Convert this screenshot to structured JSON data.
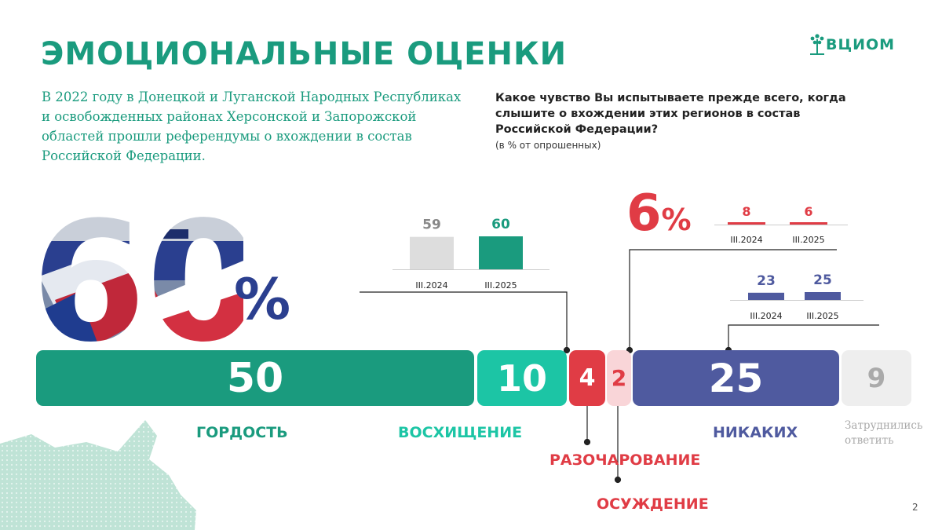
{
  "header": {
    "title": "ЭМОЦИОНАЛЬНЫЕ ОЦЕНКИ",
    "logo_text": "ВЦИОМ"
  },
  "intro": {
    "lines": [
      "В 2022 году в Донецкой и Луганской Народных Республиках",
      "и освобожденных районах Херсонской и Запорожской",
      "областей прошли референдумы о вхождении в состав",
      "Российской Федерации."
    ]
  },
  "question": {
    "lines": [
      "Какое чувство Вы испытываете прежде всего, когда",
      "слышите о вхождении этих регионов в состав",
      "Российской Федерации?"
    ],
    "note": "(в % от опрошенных)"
  },
  "highlights": {
    "positive_big": "60",
    "positive_pct": "%",
    "negative_big": "6",
    "negative_pct": "%"
  },
  "page_number": "2",
  "colors": {
    "green_dark": "#1a9b7e",
    "green_light": "#1cc5a5",
    "red": "#e03c45",
    "pink": "#f9d5d8",
    "navy": "#4f5a9f",
    "grey": "#eeeeee",
    "grey_bar": "#dddddd"
  },
  "chart_data": [
    {
      "type": "bar",
      "orientation": "horizontal-stacked",
      "categories": [
        "ГОРДОСТЬ",
        "ВОСХИЩЕНИЕ",
        "РАЗОЧАРОВАНИЕ",
        "ОСУЖДЕНИЕ",
        "НИКАКИХ",
        "Затруднились ответить"
      ],
      "values": [
        50,
        10,
        4,
        2,
        25,
        9
      ],
      "colors": [
        "#1a9b7e",
        "#1cc5a5",
        "#e03c45",
        "#f9d5d8",
        "#4f5a9f",
        "#eeeeee"
      ],
      "value_colors": [
        "#ffffff",
        "#ffffff",
        "#ffffff",
        "#e03c45",
        "#ffffff",
        "#aaaaaa"
      ],
      "label_colors": [
        "#1a9b7e",
        "#1cc5a5",
        "#e03c45",
        "#e03c45",
        "#4f5a9f",
        "#aaaaaa"
      ],
      "label_lines": [
        [
          "ГОРДОСТЬ"
        ],
        [
          "ВОСХИЩЕНИЕ"
        ],
        [
          "РАЗОЧАРОВАНИЕ"
        ],
        [
          "ОСУЖДЕНИЕ"
        ],
        [
          "НИКАКИХ"
        ],
        [
          "Затруднились",
          "ответить"
        ]
      ]
    },
    {
      "type": "bar",
      "categories": [
        "III.2024",
        "III.2025"
      ],
      "values": [
        59,
        60
      ],
      "colors": [
        "#dddddd",
        "#1a9b7e"
      ],
      "value_colors": [
        "#888888",
        "#1a9b7e"
      ],
      "ylim": [
        0,
        100
      ]
    },
    {
      "type": "bar",
      "categories": [
        "III.2024",
        "III.2025"
      ],
      "values": [
        8,
        6
      ],
      "colors": [
        "#e03c45",
        "#e03c45"
      ],
      "value_colors": [
        "#e03c45",
        "#e03c45"
      ],
      "ylim": [
        0,
        100
      ]
    },
    {
      "type": "bar",
      "categories": [
        "III.2024",
        "III.2025"
      ],
      "values": [
        23,
        25
      ],
      "colors": [
        "#4f5a9f",
        "#4f5a9f"
      ],
      "value_colors": [
        "#4f5a9f",
        "#4f5a9f"
      ],
      "ylim": [
        0,
        100
      ]
    }
  ]
}
